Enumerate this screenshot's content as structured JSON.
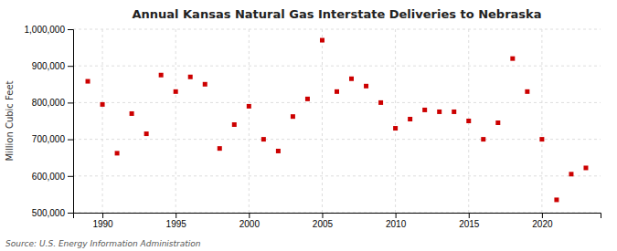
{
  "chart_data": {
    "type": "scatter",
    "title": "Annual Kansas Natural Gas Interstate Deliveries to Nebraska",
    "ylabel": "Million Cubic Feet",
    "annotations": [
      "Source: U.S. Energy Information Administration"
    ],
    "x": [
      1989,
      1990,
      1991,
      1992,
      1993,
      1994,
      1995,
      1996,
      1997,
      1998,
      1999,
      2000,
      2001,
      2002,
      2003,
      2004,
      2005,
      2006,
      2007,
      2008,
      2009,
      2010,
      2011,
      2012,
      2013,
      2014,
      2015,
      2016,
      2017,
      2018,
      2019,
      2020,
      2021,
      2022,
      2023
    ],
    "values": [
      858000,
      795000,
      662000,
      770000,
      715000,
      875000,
      830000,
      870000,
      850000,
      675000,
      740000,
      790000,
      700000,
      668000,
      762000,
      810000,
      970000,
      830000,
      865000,
      845000,
      800000,
      730000,
      755000,
      780000,
      775000,
      775000,
      750000,
      700000,
      745000,
      920000,
      830000,
      700000,
      535000,
      605000,
      622000
    ],
    "color": "#cc0000",
    "marker": "square",
    "xlim": [
      1988,
      2024
    ],
    "ylim": [
      500000,
      1000000
    ],
    "xticks": [
      1990,
      1995,
      2000,
      2005,
      2010,
      2015,
      2020
    ],
    "yticks": [
      {
        "value": 500000,
        "label": "500,000"
      },
      {
        "value": 600000,
        "label": "600,000"
      },
      {
        "value": 700000,
        "label": "700,000"
      },
      {
        "value": 800000,
        "label": "800,000"
      },
      {
        "value": 900000,
        "label": "900,000"
      },
      {
        "value": 1000000,
        "label": "1,000,000"
      }
    ],
    "grid": true
  }
}
